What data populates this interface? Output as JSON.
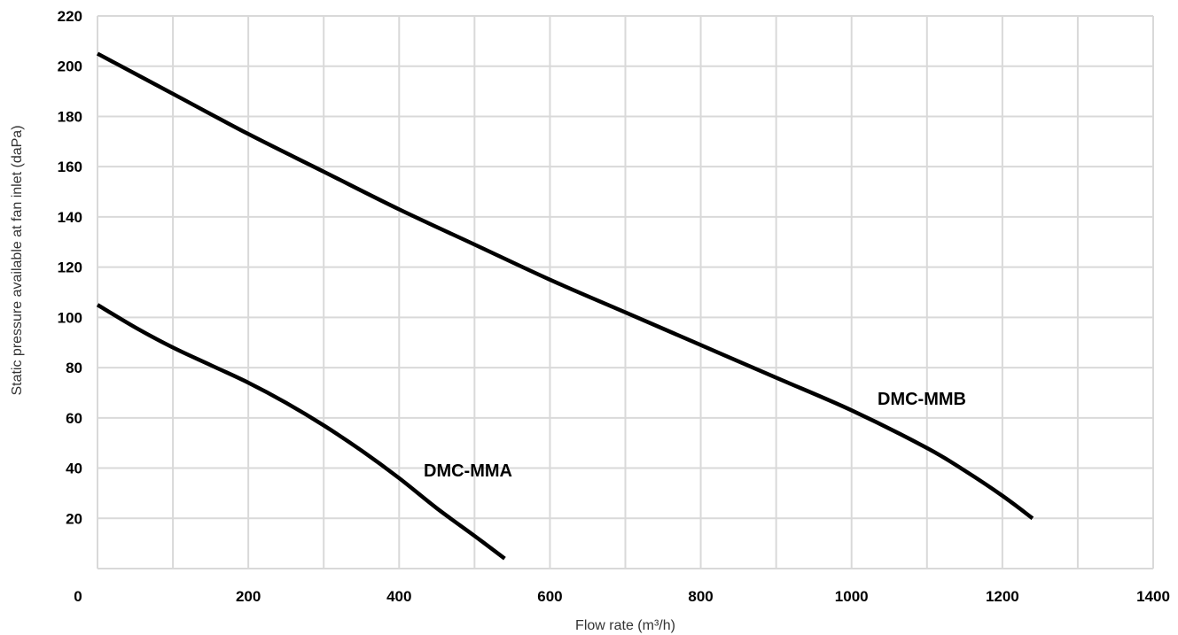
{
  "chart_data": {
    "type": "line",
    "xlabel": "Flow rate (m³/h)",
    "ylabel": "Static pressure available at fan inlet (daPa)",
    "xlim": [
      0,
      1400
    ],
    "ylim": [
      0,
      220
    ],
    "x_ticks": [
      0,
      200,
      400,
      600,
      800,
      1000,
      1200,
      1400
    ],
    "y_ticks": [
      20,
      40,
      60,
      80,
      100,
      120,
      140,
      160,
      180,
      200,
      220
    ],
    "x_minor_grid": [
      100,
      300,
      500,
      700,
      900,
      1100,
      1300
    ],
    "grid": true,
    "series": [
      {
        "name": "DMC-MMA",
        "x": [
          0,
          50,
          100,
          150,
          200,
          250,
          300,
          350,
          400,
          450,
          500,
          540
        ],
        "y": [
          105,
          96,
          88,
          81,
          74,
          66,
          57,
          47,
          36,
          24,
          13,
          4
        ]
      },
      {
        "name": "DMC-MMB",
        "x": [
          0,
          100,
          200,
          300,
          400,
          500,
          600,
          700,
          800,
          900,
          1000,
          1100,
          1150,
          1200,
          1240
        ],
        "y": [
          205,
          189,
          173,
          158,
          143,
          129,
          115,
          102,
          89,
          76,
          63,
          48,
          39,
          29,
          20
        ]
      }
    ],
    "annotations": [
      {
        "text": "DMC-MMA",
        "series": "DMC-MMA"
      },
      {
        "text": "DMC-MMB",
        "series": "DMC-MMB"
      }
    ]
  }
}
